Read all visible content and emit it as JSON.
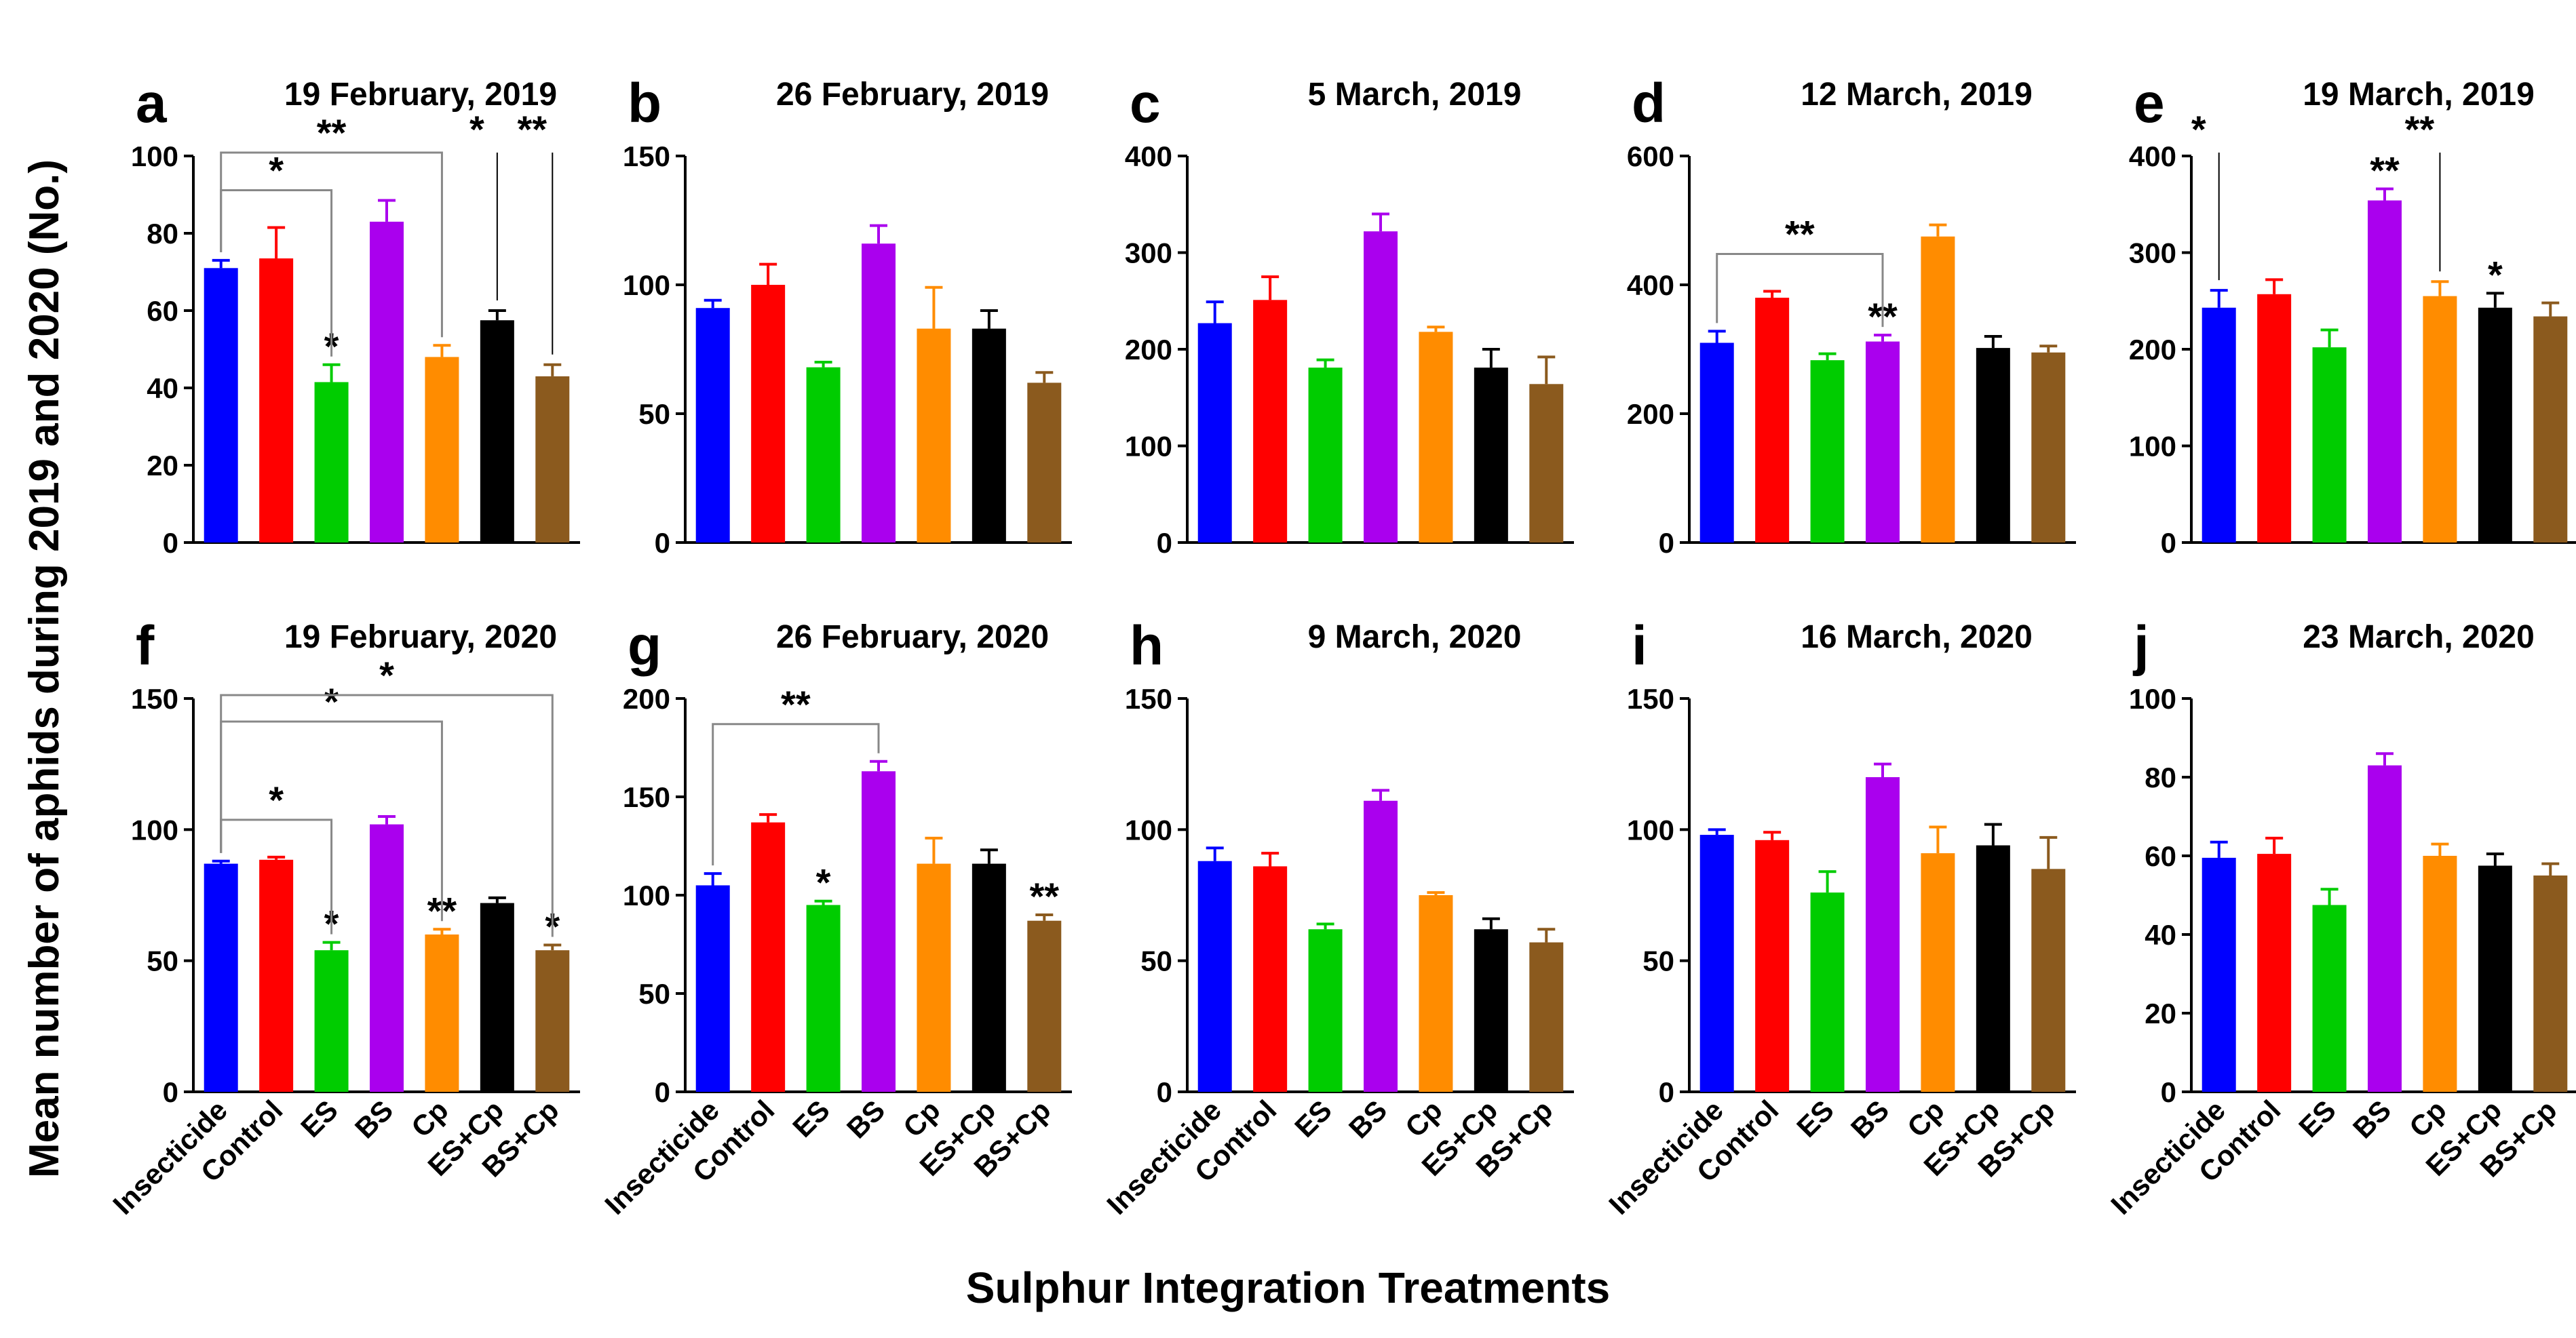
{
  "figure": {
    "ylabel": "Mean number of aphids during 2019 and 2020 (No.)",
    "xlabel": "Sulphur Integration Treatments"
  },
  "chart_data": [
    {
      "type": "bar",
      "letter": "a",
      "title": "19 February, 2019",
      "ylim": [
        0,
        100
      ],
      "ticks": [
        0,
        20,
        40,
        60,
        80,
        100
      ],
      "categories": [
        "Insecticide",
        "Control",
        "ES",
        "BS",
        "Cp",
        "ES+Cp",
        "BS+Cp"
      ],
      "values": [
        71,
        73.5,
        41.5,
        83,
        48,
        57.5,
        43
      ],
      "errors": [
        2,
        8,
        4.5,
        5.5,
        3,
        2.5,
        3
      ],
      "stars": [
        "",
        "",
        "*",
        "",
        "",
        "",
        ""
      ],
      "brackets": [
        {
          "from": 0,
          "to": 2,
          "label": "*"
        },
        {
          "from": 0,
          "to": 4,
          "label": "**"
        }
      ],
      "marks": [
        {
          "at": 5,
          "label": "*"
        },
        {
          "at": 6,
          "label": "**"
        }
      ]
    },
    {
      "type": "bar",
      "letter": "b",
      "title": "26 February, 2019",
      "ylim": [
        0,
        150
      ],
      "ticks": [
        0,
        50,
        100,
        150
      ],
      "categories": [
        "Insecticide",
        "Control",
        "ES",
        "BS",
        "Cp",
        "ES+Cp",
        "BS+Cp"
      ],
      "values": [
        91,
        100,
        68,
        116,
        83,
        83,
        62
      ],
      "errors": [
        3,
        8,
        2,
        7,
        16,
        7,
        4
      ],
      "stars": [
        "",
        "",
        "",
        "",
        "",
        "",
        ""
      ],
      "brackets": [],
      "marks": []
    },
    {
      "type": "bar",
      "letter": "c",
      "title": "5 March, 2019",
      "ylim": [
        0,
        400
      ],
      "ticks": [
        0,
        100,
        200,
        300,
        400
      ],
      "categories": [
        "Insecticide",
        "Control",
        "ES",
        "BS",
        "Cp",
        "ES+Cp",
        "BS+Cp"
      ],
      "values": [
        227,
        251,
        181,
        322,
        218,
        181,
        164
      ],
      "errors": [
        22,
        24,
        8,
        18,
        5,
        19,
        28
      ],
      "stars": [
        "",
        "",
        "",
        "",
        "",
        "",
        ""
      ],
      "brackets": [],
      "marks": []
    },
    {
      "type": "bar",
      "letter": "d",
      "title": "12 March, 2019",
      "ylim": [
        0,
        600
      ],
      "ticks": [
        0,
        200,
        400,
        600
      ],
      "categories": [
        "Insecticide",
        "Control",
        "ES",
        "BS",
        "Cp",
        "ES+Cp",
        "BS+Cp"
      ],
      "values": [
        310,
        380,
        283,
        312,
        475,
        302,
        295
      ],
      "errors": [
        18,
        10,
        10,
        10,
        18,
        18,
        10
      ],
      "stars": [
        "",
        "",
        "",
        "**",
        "",
        "",
        ""
      ],
      "brackets": [
        {
          "from": 0,
          "to": 3,
          "label": "**"
        }
      ],
      "marks": []
    },
    {
      "type": "bar",
      "letter": "e",
      "title": "19 March, 2019",
      "ylim": [
        0,
        400
      ],
      "ticks": [
        0,
        100,
        200,
        300,
        400
      ],
      "categories": [
        "Insecticide",
        "Control",
        "ES",
        "BS",
        "Cp",
        "ES+Cp",
        "BS+Cp"
      ],
      "values": [
        243,
        257,
        202,
        354,
        255,
        243,
        234
      ],
      "errors": [
        18,
        15,
        18,
        12,
        15,
        15,
        14
      ],
      "stars": [
        "",
        "",
        "",
        "**",
        "",
        "*",
        ""
      ],
      "brackets": [],
      "marks": [
        {
          "at": 0,
          "label": "*"
        },
        {
          "at": 4,
          "label": "**"
        }
      ]
    },
    {
      "type": "bar",
      "letter": "f",
      "title": "19 February, 2020",
      "ylim": [
        0,
        150
      ],
      "ticks": [
        0,
        50,
        100,
        150
      ],
      "categories": [
        "Insecticide",
        "Control",
        "ES",
        "BS",
        "Cp",
        "ES+Cp",
        "BS+Cp"
      ],
      "values": [
        87,
        88.5,
        54,
        102,
        60,
        72,
        54
      ],
      "errors": [
        1,
        1,
        3,
        3,
        2,
        2,
        2
      ],
      "stars": [
        "",
        "",
        "*",
        "",
        "**",
        "",
        "*"
      ],
      "brackets": [
        {
          "from": 0,
          "to": 2,
          "label": "*"
        },
        {
          "from": 0,
          "to": 4,
          "label": "*"
        },
        {
          "from": 0,
          "to": 6,
          "label": "*"
        }
      ],
      "marks": []
    },
    {
      "type": "bar",
      "letter": "g",
      "title": "26 February, 2020",
      "ylim": [
        0,
        200
      ],
      "ticks": [
        0,
        50,
        100,
        150,
        200
      ],
      "categories": [
        "Insecticide",
        "Control",
        "ES",
        "BS",
        "Cp",
        "ES+Cp",
        "BS+Cp"
      ],
      "values": [
        105,
        137,
        95,
        163,
        116,
        116,
        87
      ],
      "errors": [
        6,
        4,
        2,
        5,
        13,
        7,
        3
      ],
      "stars": [
        "",
        "",
        "*",
        "",
        "",
        "",
        "**"
      ],
      "brackets": [
        {
          "from": 0,
          "to": 3,
          "label": "**"
        }
      ],
      "marks": []
    },
    {
      "type": "bar",
      "letter": "h",
      "title": "9 March, 2020",
      "ylim": [
        0,
        150
      ],
      "ticks": [
        0,
        50,
        100,
        150
      ],
      "categories": [
        "Insecticide",
        "Control",
        "ES",
        "BS",
        "Cp",
        "ES+Cp",
        "BS+Cp"
      ],
      "values": [
        88,
        86,
        62,
        111,
        75,
        62,
        57
      ],
      "errors": [
        5,
        5,
        2,
        4,
        1,
        4,
        5
      ],
      "stars": [
        "",
        "",
        "",
        "",
        "",
        "",
        ""
      ],
      "brackets": [],
      "marks": []
    },
    {
      "type": "bar",
      "letter": "i",
      "title": "16 March, 2020",
      "ylim": [
        0,
        150
      ],
      "ticks": [
        0,
        50,
        100,
        150
      ],
      "categories": [
        "Insecticide",
        "Control",
        "ES",
        "BS",
        "Cp",
        "ES+Cp",
        "BS+Cp"
      ],
      "values": [
        98,
        96,
        76,
        120,
        91,
        94,
        85
      ],
      "errors": [
        2,
        3,
        8,
        5,
        10,
        8,
        12
      ],
      "stars": [
        "",
        "",
        "",
        "",
        "",
        "",
        ""
      ],
      "brackets": [],
      "marks": []
    },
    {
      "type": "bar",
      "letter": "j",
      "title": "23 March, 2020",
      "ylim": [
        0,
        100
      ],
      "ticks": [
        0,
        20,
        40,
        60,
        80,
        100
      ],
      "categories": [
        "Insecticide",
        "Control",
        "ES",
        "BS",
        "Cp",
        "ES+Cp",
        "BS+Cp"
      ],
      "values": [
        59.5,
        60.5,
        47.5,
        83,
        60,
        57.5,
        55
      ],
      "errors": [
        4,
        4,
        4,
        3,
        3,
        3,
        3
      ],
      "stars": [
        "",
        "",
        "",
        "",
        "",
        "",
        ""
      ],
      "brackets": [],
      "marks": []
    }
  ],
  "colors": [
    "#0000ff",
    "#ff0000",
    "#00cc00",
    "#aa00ee",
    "#ff8c00",
    "#000000",
    "#8b5a1e"
  ]
}
